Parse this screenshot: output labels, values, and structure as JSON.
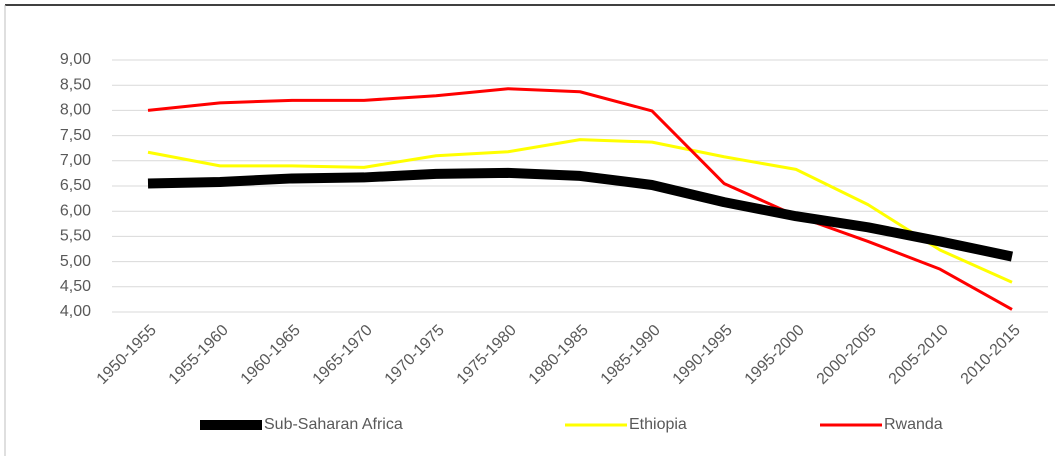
{
  "chart_data": {
    "type": "line",
    "categories": [
      "1950-1955",
      "1955-1960",
      "1960-1965",
      "1965-1970",
      "1970-1975",
      "1975-1980",
      "1980-1985",
      "1985-1990",
      "1990-1995",
      "1995-2000",
      "2000-2005",
      "2005-2010",
      "2010-2015"
    ],
    "series": [
      {
        "name": "Sub-Saharan Africa",
        "color": "#000000",
        "values": [
          6.55,
          6.58,
          6.65,
          6.67,
          6.74,
          6.76,
          6.7,
          6.52,
          6.18,
          5.9,
          5.68,
          5.4,
          5.1
        ]
      },
      {
        "name": "Ethiopia",
        "color": "#ffff00",
        "values": [
          7.17,
          6.9,
          6.9,
          6.87,
          7.1,
          7.18,
          7.42,
          7.37,
          7.08,
          6.83,
          6.13,
          5.23,
          4.59
        ]
      },
      {
        "name": "Rwanda",
        "color": "#ff0000",
        "values": [
          8.0,
          8.15,
          8.2,
          8.2,
          8.29,
          8.43,
          8.37,
          7.99,
          6.55,
          5.91,
          5.4,
          4.85,
          4.05
        ]
      }
    ],
    "ylim": [
      4,
      9
    ],
    "yticks": [
      {
        "value": 4,
        "label": "4,00"
      },
      {
        "value": 4.5,
        "label": "4,50"
      },
      {
        "value": 5,
        "label": "5,00"
      },
      {
        "value": 5.5,
        "label": "5,50"
      },
      {
        "value": 6,
        "label": "6,00"
      },
      {
        "value": 6.5,
        "label": "6,50"
      },
      {
        "value": 7,
        "label": "7,00"
      },
      {
        "value": 7.5,
        "label": "7,50"
      },
      {
        "value": 8,
        "label": "8,00"
      },
      {
        "value": 8.5,
        "label": "8,50"
      },
      {
        "value": 9,
        "label": "9,00"
      }
    ],
    "grid": true,
    "legend": "bottom"
  }
}
